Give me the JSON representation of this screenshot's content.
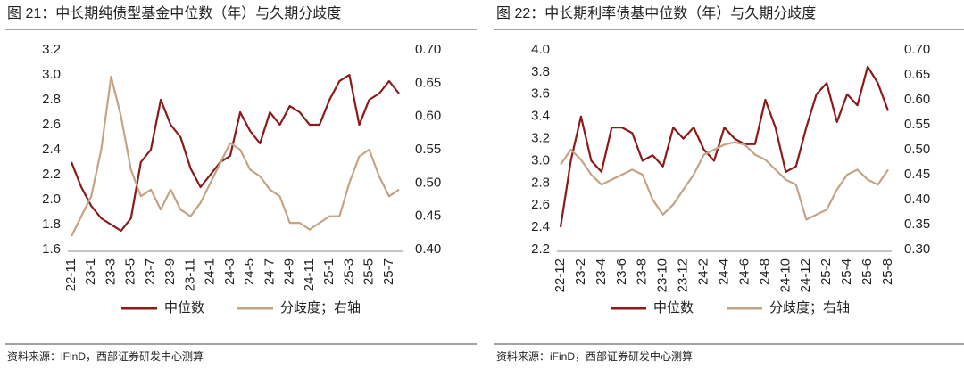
{
  "chart_data": [
    {
      "type": "line",
      "title": "图 21：中长期纯债型基金中位数（年）与久期分歧度",
      "source": "资料来源：iFinD，西部证券研发中心测算",
      "categories": [
        "22-11",
        null,
        "23-1",
        null,
        "23-3",
        null,
        "23-5",
        null,
        "23-7",
        null,
        "23-9",
        null,
        "23-11",
        null,
        "24-1",
        null,
        "24-3",
        null,
        "24-5",
        null,
        "24-7",
        null,
        "24-9",
        null,
        "24-11",
        null,
        "25-1",
        null,
        "25-3",
        null,
        "25-5",
        null,
        "25-7",
        null
      ],
      "series": [
        {
          "name": "中位数",
          "color": "#8b1a1a",
          "values": [
            2.3,
            2.1,
            1.95,
            1.85,
            1.8,
            1.75,
            1.85,
            2.3,
            2.4,
            2.8,
            2.6,
            2.5,
            2.25,
            2.1,
            2.2,
            2.3,
            2.35,
            2.7,
            2.55,
            2.45,
            2.7,
            2.6,
            2.75,
            2.7,
            2.6,
            2.6,
            2.8,
            2.95,
            3.0,
            2.6,
            2.8,
            2.85,
            2.95,
            2.85
          ]
        },
        {
          "name": "分歧度；右轴",
          "color": "#c4a484",
          "axis": "y2",
          "values": [
            0.42,
            0.45,
            0.48,
            0.55,
            0.66,
            0.6,
            0.52,
            0.48,
            0.49,
            0.46,
            0.49,
            0.46,
            0.45,
            0.47,
            0.5,
            0.53,
            0.56,
            0.55,
            0.52,
            0.51,
            0.49,
            0.48,
            0.44,
            0.44,
            0.43,
            0.44,
            0.45,
            0.45,
            0.5,
            0.54,
            0.55,
            0.51,
            0.48,
            0.49
          ]
        }
      ],
      "ylim": [
        1.6,
        3.2
      ],
      "yticks": [
        1.6,
        1.8,
        {
          "value": 2,
          "label": "2.0"
        },
        2.2,
        2.4,
        2.6,
        2.8,
        {
          "value": 3,
          "label": "3.0"
        },
        3.2
      ],
      "y2lim": [
        0.4,
        0.7
      ],
      "y2ticks": [
        {
          "value": 0.4,
          "label": "0.40"
        },
        0.45,
        {
          "value": 0.5,
          "label": "0.50"
        },
        0.55,
        {
          "value": 0.6,
          "label": "0.60"
        },
        0.65,
        {
          "value": 0.7,
          "label": "0.70"
        }
      ],
      "grid": false,
      "legend": "bottom"
    },
    {
      "type": "line",
      "title": "图 22：中长期利率债基中位数（年）与久期分歧度",
      "source": "资料来源：iFinD，西部证券研发中心测算",
      "categories": [
        "22-12",
        null,
        "23-2",
        null,
        "23-4",
        null,
        "23-6",
        null,
        "23-8",
        null,
        "23-10",
        null,
        "23-12",
        null,
        "24-2",
        null,
        "24-4",
        null,
        "24-6",
        null,
        "24-8",
        null,
        "24-10",
        null,
        "24-12",
        null,
        "25-2",
        null,
        "25-4",
        null,
        "25-6",
        null,
        "25-8"
      ],
      "series": [
        {
          "name": "中位数",
          "color": "#8b1a1a",
          "values": [
            2.4,
            3.0,
            3.4,
            3.0,
            2.9,
            3.3,
            3.3,
            3.25,
            3.0,
            3.05,
            2.95,
            3.3,
            3.2,
            3.3,
            3.1,
            3.0,
            3.3,
            3.2,
            3.15,
            3.15,
            3.55,
            3.3,
            2.9,
            2.95,
            3.3,
            3.6,
            3.7,
            3.35,
            3.6,
            3.5,
            3.85,
            3.7,
            3.45
          ]
        },
        {
          "name": "分歧度；右轴",
          "color": "#c4a484",
          "axis": "y2",
          "values": [
            0.47,
            0.5,
            0.48,
            0.45,
            0.43,
            0.44,
            0.45,
            0.46,
            0.45,
            0.4,
            0.37,
            0.39,
            0.42,
            0.45,
            0.49,
            0.5,
            0.51,
            0.515,
            0.51,
            0.49,
            0.48,
            0.46,
            0.44,
            0.43,
            0.36,
            0.37,
            0.38,
            0.42,
            0.45,
            0.46,
            0.44,
            0.43,
            0.46
          ]
        }
      ],
      "ylim": [
        2.2,
        4
      ],
      "yticks": [
        2.2,
        2.4,
        2.6,
        2.8,
        {
          "value": 3,
          "label": "3.0"
        },
        3.2,
        3.4,
        3.6,
        3.8,
        {
          "value": 4,
          "label": "4.0"
        }
      ],
      "y2lim": [
        0.3,
        0.7
      ],
      "y2ticks": [
        {
          "value": 0.3,
          "label": "0.30"
        },
        0.35,
        {
          "value": 0.4,
          "label": "0.40"
        },
        0.45,
        {
          "value": 0.5,
          "label": "0.50"
        },
        0.55,
        {
          "value": 0.6,
          "label": "0.60"
        },
        0.65,
        {
          "value": 0.7,
          "label": "0.70"
        }
      ],
      "grid": false,
      "legend": "bottom"
    }
  ]
}
